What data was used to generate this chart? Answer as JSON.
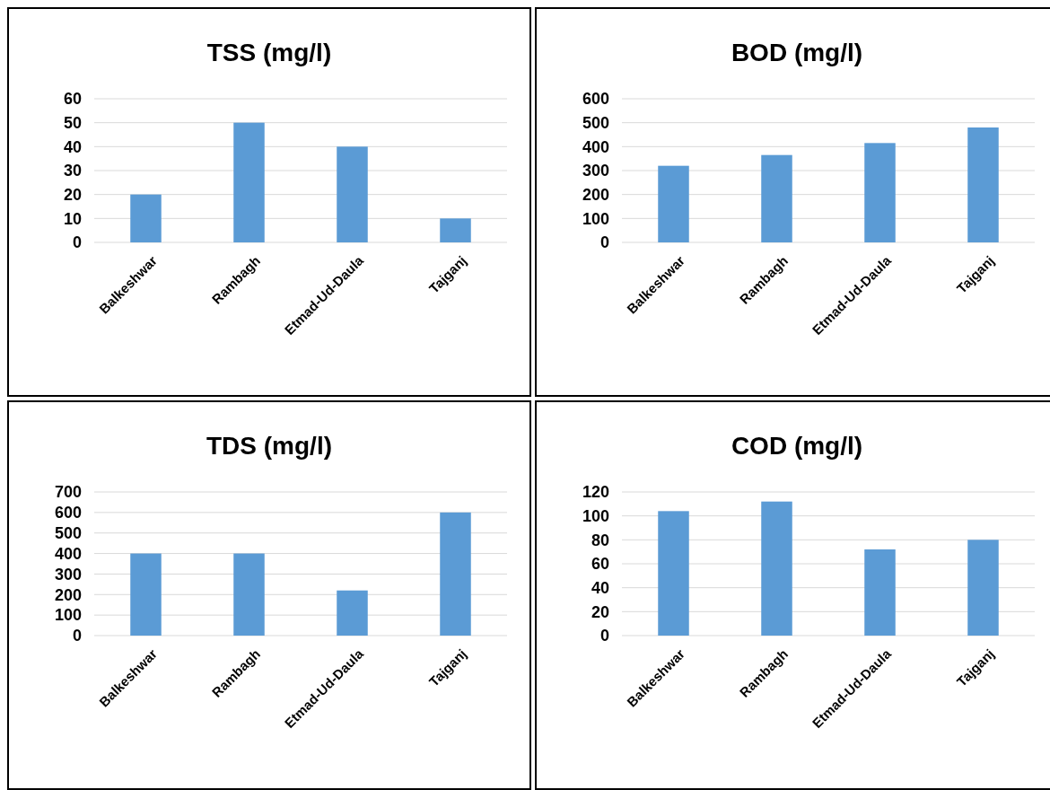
{
  "chart_data": [
    {
      "type": "bar",
      "title": "TSS (mg/l)",
      "categories": [
        "Balkeshwar",
        "Rambagh",
        "Etmad-Ud-Daula",
        "Tajganj"
      ],
      "values": [
        20,
        50,
        40,
        10
      ],
      "color": "#5b9bd5",
      "ylim": [
        0,
        60
      ],
      "yticks": [
        0,
        10,
        20,
        30,
        40,
        50,
        60
      ],
      "grid": "y"
    },
    {
      "type": "bar",
      "title": "BOD (mg/l)",
      "categories": [
        "Balkeshwar",
        "Rambagh",
        "Etmad-Ud-Daula",
        "Tajganj"
      ],
      "values": [
        320,
        365,
        415,
        480
      ],
      "color": "#5b9bd5",
      "ylim": [
        0,
        600
      ],
      "yticks": [
        0,
        100,
        200,
        300,
        400,
        500,
        600
      ],
      "grid": "y"
    },
    {
      "type": "bar",
      "title": "TDS (mg/l)",
      "categories": [
        "Balkeshwar",
        "Rambagh",
        "Etmad-Ud-Daula",
        "Tajganj"
      ],
      "values": [
        400,
        400,
        220,
        600
      ],
      "color": "#5b9bd5",
      "ylim": [
        0,
        700
      ],
      "yticks": [
        0,
        100,
        200,
        300,
        400,
        500,
        600,
        700
      ],
      "grid": "y"
    },
    {
      "type": "bar",
      "title": "COD (mg/l)",
      "categories": [
        "Balkeshwar",
        "Rambagh",
        "Etmad-Ud-Daula",
        "Tajganj"
      ],
      "values": [
        104,
        112,
        72,
        80
      ],
      "color": "#5b9bd5",
      "ylim": [
        0,
        120
      ],
      "yticks": [
        0,
        20,
        40,
        60,
        80,
        100,
        120
      ],
      "grid": "y"
    }
  ]
}
